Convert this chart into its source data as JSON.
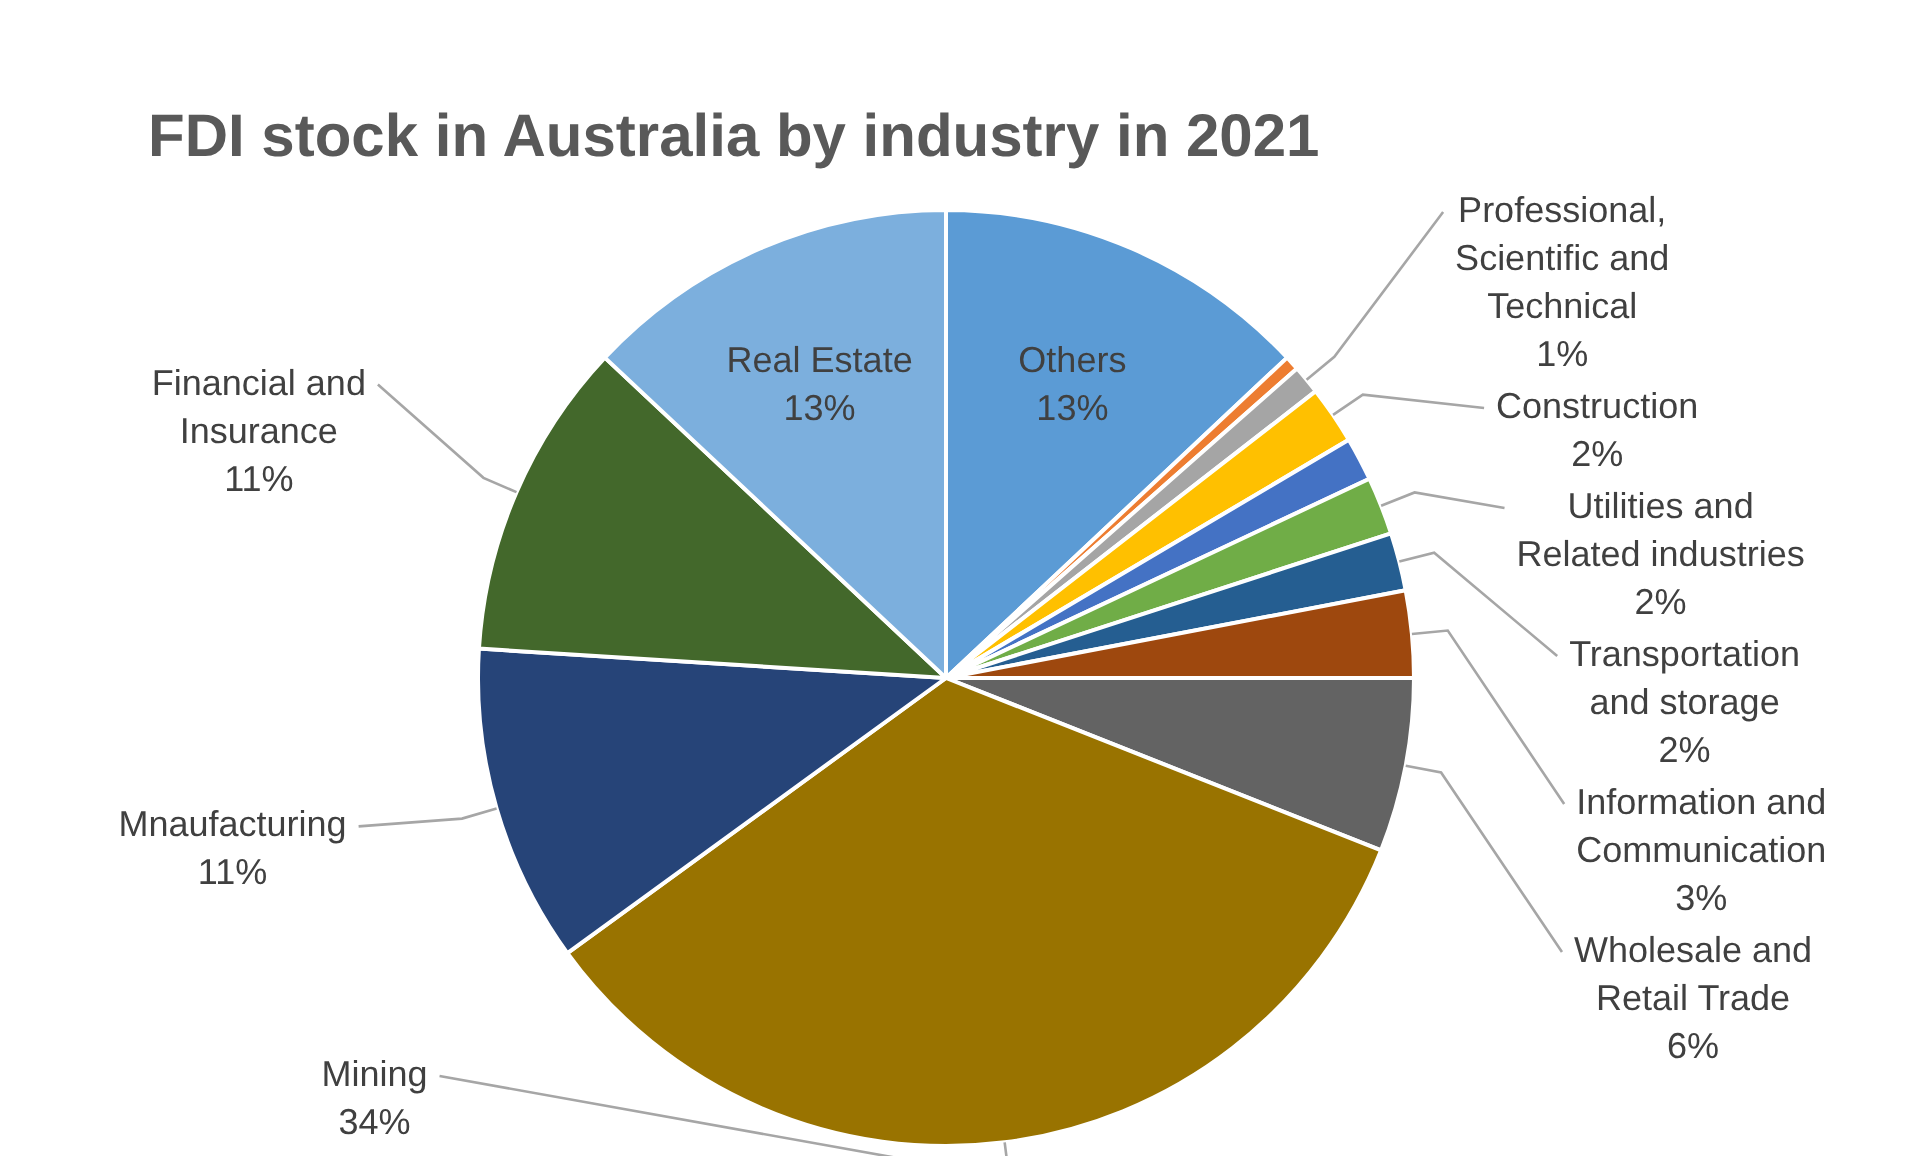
{
  "chart_data": {
    "type": "pie",
    "title": "FDI stock in Australia by industry in 2021",
    "categories": [
      "Others",
      null,
      "Professional, Scientific and Technical",
      "Construction",
      null,
      "Utilities and Related industries",
      "Transportation and storage",
      "Information and Communication",
      "Wholesale and Retail Trade",
      "Mining",
      "Mnaufacturing",
      "Financial and Insurance",
      "Real Estate"
    ],
    "values": [
      13,
      0.5,
      1,
      2,
      1.5,
      2,
      2,
      3,
      6,
      34,
      11,
      11,
      13
    ],
    "value_labels": [
      "13%",
      null,
      "1%",
      "2%",
      null,
      "2%",
      "2%",
      "3%",
      "6%",
      "34%",
      "11%",
      "11%",
      "13%"
    ],
    "colors": [
      "#5b9bd5",
      "#ed7d31",
      "#a5a5a5",
      "#ffc000",
      "#4472c4",
      "#70ad47",
      "#255e91",
      "#9e480e",
      "#636363",
      "#997300",
      "#264478",
      "#43682b",
      "#7cafdd"
    ],
    "legend": false
  }
}
